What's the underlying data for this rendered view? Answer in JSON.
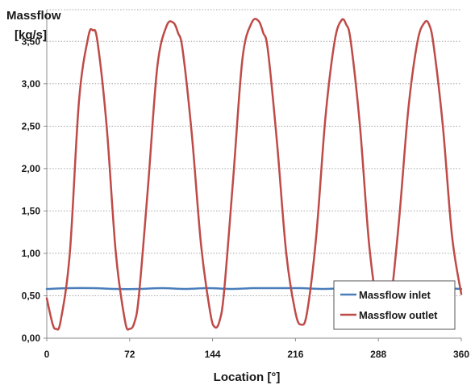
{
  "chart_data": {
    "type": "line",
    "ylabel_line1": "Massflow",
    "ylabel_line2": "[kg/s]",
    "xlabel": "Location [°]",
    "xlim": [
      0,
      360
    ],
    "ylim": [
      0,
      3.75
    ],
    "x_ticks": [
      0,
      72,
      144,
      216,
      288,
      360
    ],
    "x_tick_labels": [
      "0",
      "72",
      "144",
      "216",
      "288",
      "360"
    ],
    "y_ticks": [
      0,
      0.5,
      1,
      1.5,
      2,
      2.5,
      3,
      3.5
    ],
    "y_tick_labels": [
      "0,00",
      "0,50",
      "1,00",
      "1,50",
      "2,00",
      "2,50",
      "3,00",
      "3,50"
    ],
    "grid": "horizontal dotted",
    "legend_position": "bottom-right",
    "series": [
      {
        "name": "Massflow inlet",
        "color": "#4a7ebb",
        "x": [
          0,
          20,
          40,
          60,
          80,
          100,
          120,
          140,
          160,
          180,
          200,
          220,
          240,
          260,
          280,
          300,
          320,
          340,
          360
        ],
        "y": [
          0.58,
          0.59,
          0.59,
          0.58,
          0.58,
          0.59,
          0.58,
          0.59,
          0.58,
          0.59,
          0.59,
          0.59,
          0.58,
          0.59,
          0.59,
          0.59,
          0.58,
          0.59,
          0.58
        ]
      },
      {
        "name": "Massflow outlet",
        "color": "#be4b48",
        "x": [
          0,
          5,
          8,
          12,
          20,
          28,
          36,
          40,
          44,
          52,
          60,
          68,
          72,
          76,
          80,
          88,
          96,
          104,
          110,
          114,
          118,
          126,
          134,
          142,
          146,
          150,
          154,
          162,
          170,
          178,
          184,
          188,
          192,
          200,
          208,
          216,
          221,
          226,
          234,
          242,
          250,
          256,
          260,
          264,
          272,
          280,
          288,
          293,
          298,
          306,
          314,
          322,
          328,
          332,
          336,
          344,
          352,
          360
        ],
        "y": [
          0.47,
          0.17,
          0.11,
          0.2,
          1.0,
          2.8,
          3.55,
          3.63,
          3.5,
          2.5,
          1.0,
          0.2,
          0.11,
          0.18,
          0.5,
          1.8,
          3.2,
          3.68,
          3.72,
          3.6,
          3.4,
          2.4,
          1.1,
          0.3,
          0.13,
          0.2,
          0.55,
          1.9,
          3.3,
          3.72,
          3.74,
          3.6,
          3.4,
          2.3,
          1.0,
          0.3,
          0.16,
          0.3,
          1.2,
          2.6,
          3.5,
          3.75,
          3.7,
          3.5,
          2.5,
          1.1,
          0.3,
          0.16,
          0.35,
          1.4,
          2.7,
          3.5,
          3.72,
          3.7,
          3.45,
          2.5,
          1.2,
          0.52
        ]
      }
    ]
  }
}
